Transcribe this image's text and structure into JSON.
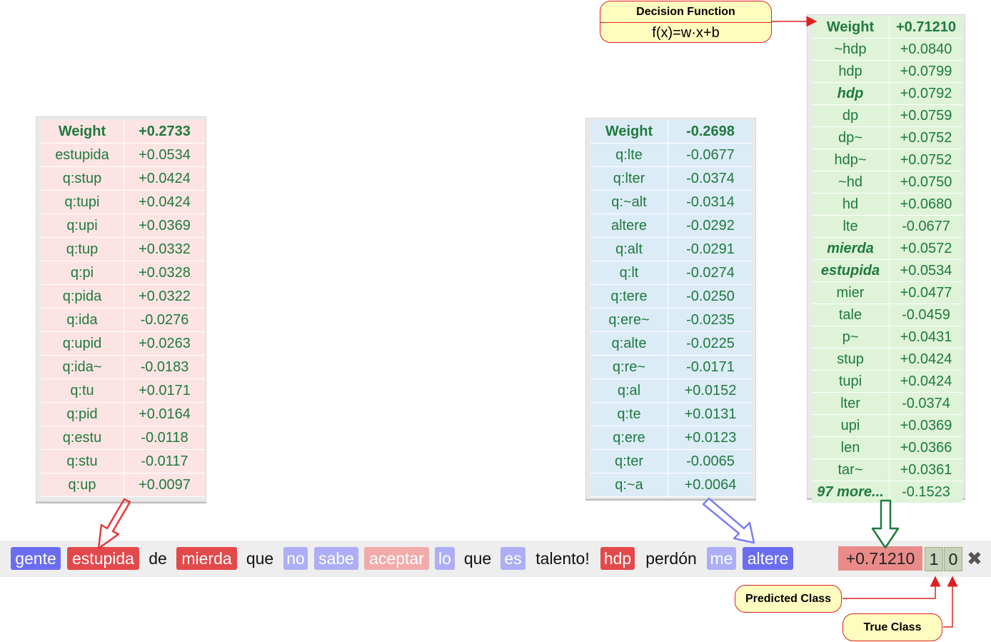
{
  "callouts": {
    "decision_title": "Decision Function",
    "decision_formula": "f(x)=w·x+b",
    "predicted_class": "Predicted Class",
    "true_class": "True Class"
  },
  "tables": {
    "left": {
      "header": [
        "Weight",
        "+0.2733"
      ],
      "rows": [
        [
          "estupida",
          "+0.0534"
        ],
        [
          "q:stup",
          "+0.0424"
        ],
        [
          "q:tupi",
          "+0.0424"
        ],
        [
          "q:upi",
          "+0.0369"
        ],
        [
          "q:tup",
          "+0.0332"
        ],
        [
          "q:pi",
          "+0.0328"
        ],
        [
          "q:pida",
          "+0.0322"
        ],
        [
          "q:ida",
          "-0.0276"
        ],
        [
          "q:upid",
          "+0.0263"
        ],
        [
          "q:ida~",
          "-0.0183"
        ],
        [
          "q:tu",
          "+0.0171"
        ],
        [
          "q:pid",
          "+0.0164"
        ],
        [
          "q:estu",
          "-0.0118"
        ],
        [
          "q:stu",
          "-0.0117"
        ],
        [
          "q:up",
          "+0.0097"
        ]
      ]
    },
    "middle": {
      "header": [
        "Weight",
        "-0.2698"
      ],
      "rows": [
        [
          "q:lte",
          "-0.0677"
        ],
        [
          "q:lter",
          "-0.0374"
        ],
        [
          "q:~alt",
          "-0.0314"
        ],
        [
          "altere",
          "-0.0292"
        ],
        [
          "q:alt",
          "-0.0291"
        ],
        [
          "q:lt",
          "-0.0274"
        ],
        [
          "q:tere",
          "-0.0250"
        ],
        [
          "q:ere~",
          "-0.0235"
        ],
        [
          "q:alte",
          "-0.0225"
        ],
        [
          "q:re~",
          "-0.0171"
        ],
        [
          "q:al",
          "+0.0152"
        ],
        [
          "q:te",
          "+0.0131"
        ],
        [
          "q:ere",
          "+0.0123"
        ],
        [
          "q:ter",
          "-0.0065"
        ],
        [
          "q:~a",
          "+0.0064"
        ]
      ]
    },
    "right": {
      "header": [
        "Weight",
        "+0.71210"
      ],
      "rows": [
        [
          "~hdp",
          "+0.0840"
        ],
        [
          "hdp",
          "+0.0799"
        ],
        [
          "hdp",
          "+0.0792"
        ],
        [
          "dp",
          "+0.0759"
        ],
        [
          "dp~",
          "+0.0752"
        ],
        [
          "hdp~",
          "+0.0752"
        ],
        [
          "~hd",
          "+0.0750"
        ],
        [
          "hd",
          "+0.0680"
        ],
        [
          "lte",
          "-0.0677"
        ],
        [
          "mierda",
          "+0.0572"
        ],
        [
          "estupida",
          "+0.0534"
        ],
        [
          "mier",
          "+0.0477"
        ],
        [
          "tale",
          "-0.0459"
        ],
        [
          "p~",
          "+0.0431"
        ],
        [
          "stup",
          "+0.0424"
        ],
        [
          "tupi",
          "+0.0424"
        ],
        [
          "lter",
          "-0.0374"
        ],
        [
          "upi",
          "+0.0369"
        ],
        [
          "len",
          "+0.0366"
        ],
        [
          "tar~",
          "+0.0361"
        ],
        [
          "97 more...",
          "-0.1523"
        ]
      ],
      "emphasized_rows": [
        2,
        9,
        10,
        20
      ]
    }
  },
  "tokens": [
    {
      "text": "gente",
      "style": "neg"
    },
    {
      "text": "estupida",
      "style": "pos"
    },
    {
      "text": "de",
      "style": "none"
    },
    {
      "text": "mierda",
      "style": "pos"
    },
    {
      "text": "que",
      "style": "none"
    },
    {
      "text": "no",
      "style": "neg-light"
    },
    {
      "text": "sabe",
      "style": "neg-light"
    },
    {
      "text": "aceptar",
      "style": "pos-light"
    },
    {
      "text": "lo",
      "style": "neg-light"
    },
    {
      "text": "que",
      "style": "none"
    },
    {
      "text": "es",
      "style": "neg-light"
    },
    {
      "text": "talento!",
      "style": "none"
    },
    {
      "text": "hdp",
      "style": "pos"
    },
    {
      "text": "perdón",
      "style": "none"
    },
    {
      "text": "me",
      "style": "neg-light"
    },
    {
      "text": "altere",
      "style": "neg"
    }
  ],
  "result": {
    "score": "+0.71210",
    "predicted_class": "1",
    "true_class": "0",
    "close_icon": "close-icon"
  },
  "colors": {
    "positive_strong": "#e3494b",
    "positive_light": "#f1abab",
    "negative_strong": "#6b6df0",
    "negative_light": "#adaef5",
    "table_text": "#1f7a3c",
    "left_table_bg": "#fde4e4",
    "middle_table_bg": "#dcecf7",
    "right_table_bg": "#def3d8",
    "callout_bg": "#fffcc0",
    "callout_border": "#e02020"
  }
}
